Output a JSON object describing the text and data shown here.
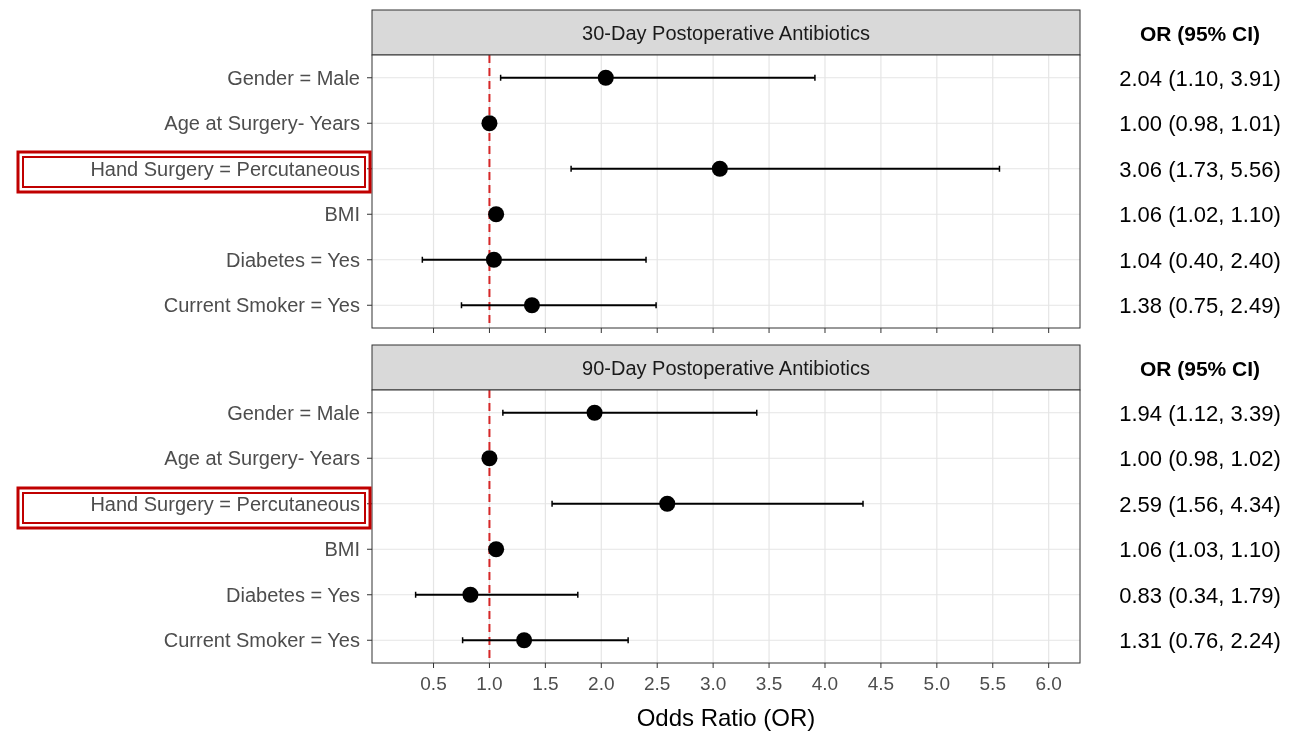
{
  "chart_data": [
    {
      "type": "scatter",
      "orientation": "horizontal",
      "title": "30-Day Postoperative Antibiotics",
      "categories": [
        "Gender = Male",
        "Age at Surgery- Years",
        "Hand Surgery = Percutaneous",
        "BMI",
        "Diabetes = Yes",
        "Current Smoker = Yes"
      ],
      "values": [
        2.04,
        1.0,
        3.06,
        1.06,
        1.04,
        1.38
      ],
      "errors": [
        [
          1.1,
          3.91
        ],
        [
          0.98,
          1.01
        ],
        [
          1.73,
          5.56
        ],
        [
          1.02,
          1.1
        ],
        [
          0.4,
          2.4
        ],
        [
          0.75,
          2.49
        ]
      ],
      "value_labels": [
        "2.04 (1.10, 3.91)",
        "1.00 (0.98, 1.01)",
        "3.06 (1.73, 5.56)",
        "1.06 (1.02, 1.10)",
        "1.04 (0.40, 2.40)",
        "1.38 (0.75, 2.49)"
      ],
      "color": "#000000",
      "marker": "circle",
      "grid": true,
      "annotations": [
        "OR (95% CI)"
      ],
      "xlim": [
        -0.05,
        6.28
      ],
      "xticks": [
        {
          "value": 0.5,
          "label": null
        },
        {
          "value": 1,
          "label": null
        },
        {
          "value": 1.5,
          "label": null
        },
        {
          "value": 2,
          "label": null
        },
        {
          "value": 2.5,
          "label": null
        },
        {
          "value": 3,
          "label": null
        },
        {
          "value": 3.5,
          "label": null
        },
        {
          "value": 4,
          "label": null
        },
        {
          "value": 4.5,
          "label": null
        },
        {
          "value": 5,
          "label": null
        },
        {
          "value": 5.5,
          "label": null
        },
        {
          "value": 6,
          "label": null
        }
      ],
      "tick_labels": "y",
      "ref_lines": [
        {
          "axis": "x",
          "value": 1,
          "color": "#d62728",
          "line_style": "dashed"
        }
      ]
    },
    {
      "type": "scatter",
      "orientation": "horizontal",
      "title": "90-Day Postoperative Antibiotics",
      "xlabel": "Odds Ratio (OR)",
      "categories": [
        "Gender = Male",
        "Age at Surgery- Years",
        "Hand Surgery = Percutaneous",
        "BMI",
        "Diabetes = Yes",
        "Current Smoker = Yes"
      ],
      "values": [
        1.94,
        1.0,
        2.59,
        1.06,
        0.83,
        1.31
      ],
      "errors": [
        [
          1.12,
          3.39
        ],
        [
          0.98,
          1.02
        ],
        [
          1.56,
          4.34
        ],
        [
          1.06,
          1.1
        ],
        [
          0.34,
          1.79
        ],
        [
          0.76,
          2.24
        ]
      ],
      "value_labels": [
        "1.94 (1.12, 3.39)",
        "1.00 (0.98, 1.02)",
        "2.59 (1.56, 4.34)",
        "1.06 (1.03, 1.10)",
        "0.83 (0.34, 1.79)",
        "1.31 (0.76, 2.24)"
      ],
      "color": "#000000",
      "marker": "circle",
      "grid": true,
      "annotations": [
        "OR (95% CI)"
      ],
      "xlim": [
        -0.05,
        6.28
      ],
      "xticks": [
        {
          "value": 0.5,
          "label": "0.5"
        },
        {
          "value": 1,
          "label": "1.0"
        },
        {
          "value": 1.5,
          "label": "1.5"
        },
        {
          "value": 2,
          "label": "2.0"
        },
        {
          "value": 2.5,
          "label": "2.5"
        },
        {
          "value": 3,
          "label": "3.0"
        },
        {
          "value": 3.5,
          "label": "3.5"
        },
        {
          "value": 4,
          "label": "4.0"
        },
        {
          "value": 4.5,
          "label": "4.5"
        },
        {
          "value": 5,
          "label": "5.0"
        },
        {
          "value": 5.5,
          "label": "5.5"
        },
        {
          "value": 6,
          "label": "6.0"
        }
      ],
      "ref_lines": [
        {
          "axis": "x",
          "value": 1,
          "color": "#d62728",
          "line_style": "dashed"
        }
      ]
    }
  ]
}
